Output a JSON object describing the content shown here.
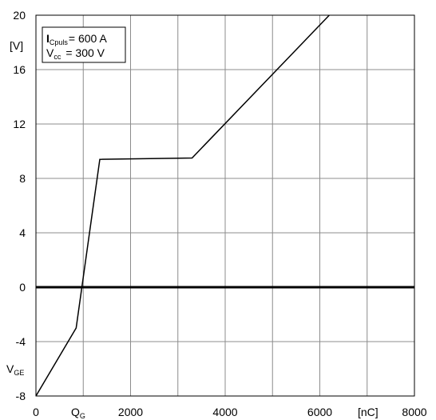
{
  "chart_data": {
    "type": "line",
    "xlim": [
      0,
      8000
    ],
    "ylim": [
      -8,
      20
    ],
    "x_ticks": [
      "0",
      "2000",
      "4000",
      "6000",
      "8000"
    ],
    "x_tick_values": [
      0,
      2000,
      4000,
      6000,
      8000
    ],
    "y_ticks": [
      "-8",
      "-4",
      "0",
      "4",
      "8",
      "12",
      "16",
      "20"
    ],
    "y_tick_values": [
      -8,
      -4,
      0,
      4,
      8,
      12,
      16,
      20
    ],
    "x_unit": "[nC]",
    "x_symbol": "Q",
    "x_symbol_sub": "G",
    "y_unit": "[V]",
    "y_symbol": "V",
    "y_symbol_sub": "GE",
    "grid": true,
    "legend": {
      "line1_main": "I",
      "line1_sub": "Cpuls",
      "line1_value": "= 600 A",
      "line2_main": "V",
      "line2_sub": "cc",
      "line2_value": "= 300 V"
    },
    "series": [
      {
        "x": [
          0,
          850,
          1350,
          3300,
          6200
        ],
        "y": [
          -8,
          -3,
          9.4,
          9.5,
          20
        ]
      }
    ],
    "zero_line": 0
  }
}
